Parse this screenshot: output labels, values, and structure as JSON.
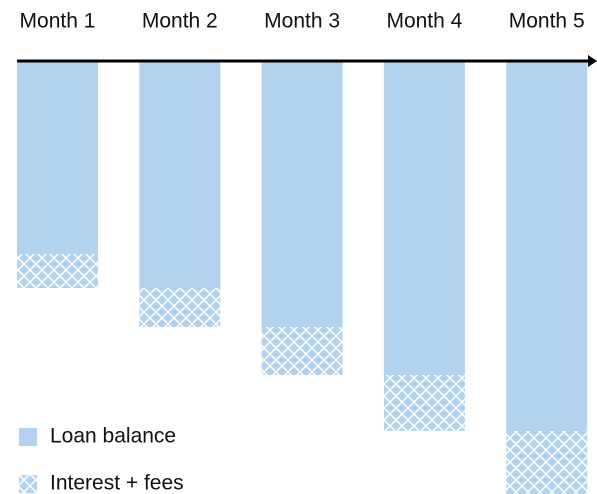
{
  "chart_data": {
    "type": "stacked-bar-down",
    "categories": [
      "Month 1",
      "Month 2",
      "Month 3",
      "Month 4",
      "Month 5"
    ],
    "series": [
      {
        "name": "Loan balance",
        "color": "#b1d3ef",
        "values": [
          193,
          227,
          266,
          314,
          370
        ]
      },
      {
        "name": "Interest + fees",
        "color": "#b1d3ef",
        "pattern": "crosshatch",
        "values": [
          34,
          39,
          48,
          56,
          63
        ]
      }
    ],
    "ylim": [
      0,
      433
    ],
    "legend": "bottom-left"
  }
}
